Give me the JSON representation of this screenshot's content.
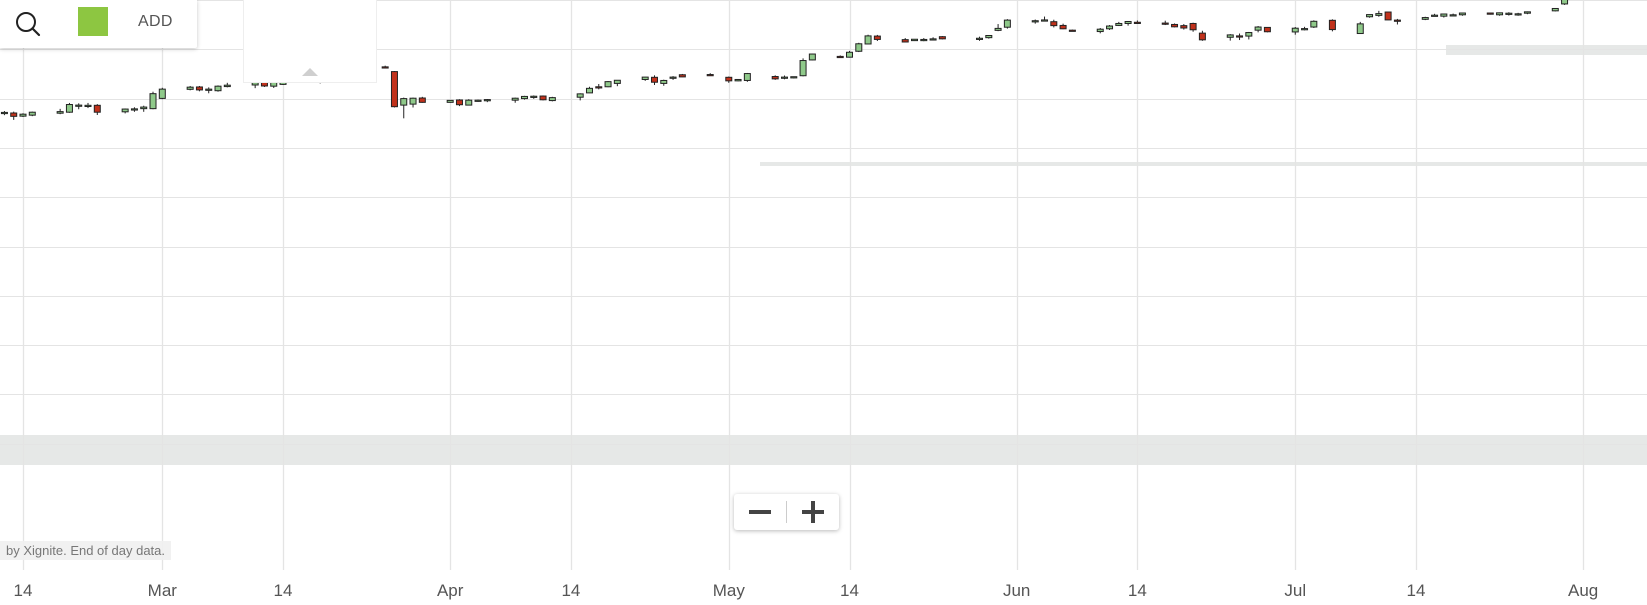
{
  "toolbar": {
    "add_label": "ADD",
    "icons": [
      "search-icon"
    ],
    "series_color": "#8dc641"
  },
  "zoom": {
    "icons": [
      "minus-icon",
      "plus-icon"
    ]
  },
  "attribution": "by Xignite. End of day data.",
  "colors": {
    "up_fill": "#8fc98a",
    "down_fill": "#c1311b",
    "candle_stroke": "#222222",
    "grid": "#e4e4e4",
    "band": "#e6e8e7"
  },
  "chart_data": {
    "type": "candlestick",
    "title": "",
    "xlabel": "",
    "ylabel": "",
    "x_ticks": [
      "14",
      "Mar",
      "14",
      "Apr",
      "14",
      "May",
      "14",
      "Jun",
      "14",
      "Jul",
      "14",
      "Aug"
    ],
    "x_range": [
      "Feb 11",
      "Aug 4"
    ],
    "y_range_approx": [
      0.0,
      50.0
    ],
    "y_gridlines_approx": [
      5,
      10,
      15,
      20,
      25,
      30,
      35,
      40,
      45,
      50
    ],
    "grid": true,
    "legend": "none",
    "candles": [
      {
        "date": "Feb 12",
        "open": 38.5,
        "high": 38.74,
        "low": 38.32,
        "close": 38.6
      },
      {
        "date": "Feb 13",
        "open": 38.54,
        "high": 38.68,
        "low": 37.84,
        "close": 38.2
      },
      {
        "date": "Feb 14",
        "open": 38.22,
        "high": 38.52,
        "low": 38.14,
        "close": 38.42
      },
      {
        "date": "Feb 15",
        "open": 38.32,
        "high": 38.68,
        "low": 38.22,
        "close": 38.62
      },
      {
        "date": "Feb 18",
        "open": 38.52,
        "high": 38.96,
        "low": 38.42,
        "close": 38.68
      },
      {
        "date": "Feb 19",
        "open": 38.62,
        "high": 39.56,
        "low": 38.56,
        "close": 39.4
      },
      {
        "date": "Feb 20",
        "open": 39.22,
        "high": 39.52,
        "low": 38.92,
        "close": 39.34
      },
      {
        "date": "Feb 21",
        "open": 39.32,
        "high": 39.56,
        "low": 39.04,
        "close": 39.32
      },
      {
        "date": "Feb 22",
        "open": 39.32,
        "high": 39.44,
        "low": 38.34,
        "close": 38.62
      },
      {
        "date": "Feb 25",
        "open": 38.66,
        "high": 39.0,
        "low": 38.5,
        "close": 38.94
      },
      {
        "date": "Feb 26",
        "open": 38.96,
        "high": 39.12,
        "low": 38.66,
        "close": 38.96
      },
      {
        "date": "Feb 27",
        "open": 38.98,
        "high": 39.28,
        "low": 38.66,
        "close": 39.14
      },
      {
        "date": "Feb 28",
        "open": 38.98,
        "high": 40.7,
        "low": 38.92,
        "close": 40.5
      },
      {
        "date": "Mar 1",
        "open": 40.02,
        "high": 41.1,
        "low": 39.94,
        "close": 40.96
      },
      {
        "date": "Mar 4",
        "open": 40.94,
        "high": 41.28,
        "low": 40.84,
        "close": 41.16
      },
      {
        "date": "Mar 5",
        "open": 41.18,
        "high": 41.28,
        "low": 40.74,
        "close": 40.88
      },
      {
        "date": "Mar 6",
        "open": 40.96,
        "high": 41.14,
        "low": 40.54,
        "close": 40.96
      },
      {
        "date": "Mar 7",
        "open": 40.8,
        "high": 41.34,
        "low": 40.7,
        "close": 41.26
      },
      {
        "date": "Mar 8",
        "open": 41.22,
        "high": 41.6,
        "low": 41.14,
        "close": 41.36
      },
      {
        "date": "Mar 11",
        "open": 41.38,
        "high": 41.68,
        "low": 41.06,
        "close": 41.62
      },
      {
        "date": "Mar 12",
        "open": 41.7,
        "high": 41.78,
        "low": 41.18,
        "close": 41.28
      },
      {
        "date": "Mar 13",
        "open": 41.26,
        "high": 41.84,
        "low": 41.08,
        "close": 41.76
      },
      {
        "date": "Mar 14",
        "open": 41.44,
        "high": 41.84,
        "low": 41.38,
        "close": 41.74
      },
      {
        "date": "Mar 15",
        "open": 41.72,
        "high": 42.7,
        "low": 41.6,
        "close": 42.54
      },
      {
        "date": "Mar 18",
        "open": 42.48,
        "high": 42.6,
        "low": 41.54,
        "close": 41.94
      },
      {
        "date": "Mar 19",
        "open": 41.8,
        "high": 42.66,
        "low": 41.66,
        "close": 42.44
      },
      {
        "date": "Mar 20",
        "open": 42.44,
        "high": 42.68,
        "low": 42.34,
        "close": 42.64
      },
      {
        "date": "Mar 21",
        "open": 42.58,
        "high": 42.96,
        "low": 42.36,
        "close": 42.88
      },
      {
        "date": "Mar 22",
        "open": 42.9,
        "high": 43.36,
        "low": 42.74,
        "close": 43.1
      },
      {
        "date": "Mar 25",
        "open": 43.22,
        "high": 43.34,
        "low": 43.06,
        "close": 43.12
      },
      {
        "date": "Mar 26",
        "open": 42.74,
        "high": 42.8,
        "low": 39.1,
        "close": 39.18
      },
      {
        "date": "Mar 27",
        "open": 39.34,
        "high": 40.1,
        "low": 38.0,
        "close": 40.0
      },
      {
        "date": "Mar 28",
        "open": 39.44,
        "high": 40.1,
        "low": 39.1,
        "close": 40.04
      },
      {
        "date": "Mar 29",
        "open": 40.06,
        "high": 40.18,
        "low": 39.58,
        "close": 39.62
      },
      {
        "date": "Apr 1",
        "open": 39.62,
        "high": 39.86,
        "low": 39.58,
        "close": 39.82
      },
      {
        "date": "Apr 2",
        "open": 39.86,
        "high": 39.94,
        "low": 39.24,
        "close": 39.38
      },
      {
        "date": "Apr 3",
        "open": 39.34,
        "high": 39.94,
        "low": 39.34,
        "close": 39.84
      },
      {
        "date": "Apr 4",
        "open": 39.72,
        "high": 39.9,
        "low": 39.68,
        "close": 39.84
      },
      {
        "date": "Apr 5",
        "open": 39.8,
        "high": 39.96,
        "low": 39.64,
        "close": 39.9
      },
      {
        "date": "Apr 8",
        "open": 39.84,
        "high": 40.1,
        "low": 39.58,
        "close": 40.04
      },
      {
        "date": "Apr 9",
        "open": 40.0,
        "high": 40.28,
        "low": 39.9,
        "close": 40.22
      },
      {
        "date": "Apr 10",
        "open": 40.24,
        "high": 40.32,
        "low": 39.98,
        "close": 40.24
      },
      {
        "date": "Apr 11",
        "open": 40.26,
        "high": 40.32,
        "low": 39.82,
        "close": 39.88
      },
      {
        "date": "Apr 12",
        "open": 39.8,
        "high": 40.18,
        "low": 39.72,
        "close": 40.1
      },
      {
        "date": "Apr 15",
        "open": 40.14,
        "high": 40.54,
        "low": 39.82,
        "close": 40.48
      },
      {
        "date": "Apr 16",
        "open": 40.58,
        "high": 41.2,
        "low": 40.56,
        "close": 41.04
      },
      {
        "date": "Apr 17",
        "open": 41.2,
        "high": 41.48,
        "low": 40.94,
        "close": 41.14
      },
      {
        "date": "Apr 18",
        "open": 41.2,
        "high": 41.78,
        "low": 41.16,
        "close": 41.72
      },
      {
        "date": "Apr 19",
        "open": 41.54,
        "high": 41.88,
        "low": 41.26,
        "close": 41.86
      },
      {
        "date": "Apr 22",
        "open": 41.94,
        "high": 42.2,
        "low": 41.8,
        "close": 42.18
      },
      {
        "date": "Apr 23",
        "open": 42.16,
        "high": 42.36,
        "low": 41.38,
        "close": 41.66
      },
      {
        "date": "Apr 24",
        "open": 41.54,
        "high": 41.92,
        "low": 41.3,
        "close": 41.84
      },
      {
        "date": "Apr 25",
        "open": 42.08,
        "high": 42.28,
        "low": 41.9,
        "close": 42.18
      },
      {
        "date": "Apr 26",
        "open": 42.42,
        "high": 42.5,
        "low": 42.18,
        "close": 42.2
      },
      {
        "date": "Apr 29",
        "open": 42.44,
        "high": 42.58,
        "low": 42.4,
        "close": 42.42
      },
      {
        "date": "May 1",
        "open": 42.16,
        "high": 42.24,
        "low": 41.6,
        "close": 41.8
      },
      {
        "date": "May 2",
        "open": 41.8,
        "high": 41.96,
        "low": 41.76,
        "close": 41.94
      },
      {
        "date": "May 3",
        "open": 41.84,
        "high": 42.6,
        "low": 41.7,
        "close": 42.54
      },
      {
        "date": "May 6",
        "open": 42.24,
        "high": 42.36,
        "low": 41.9,
        "close": 42.0
      },
      {
        "date": "May 7",
        "open": 42.14,
        "high": 42.34,
        "low": 41.96,
        "close": 42.18
      },
      {
        "date": "May 8",
        "open": 42.16,
        "high": 42.24,
        "low": 42.04,
        "close": 42.22
      },
      {
        "date": "May 9",
        "open": 42.32,
        "high": 44.08,
        "low": 42.26,
        "close": 43.86
      },
      {
        "date": "May 10",
        "open": 43.92,
        "high": 44.56,
        "low": 43.88,
        "close": 44.52
      },
      {
        "date": "May 13",
        "open": 44.28,
        "high": 44.38,
        "low": 44.12,
        "close": 44.2
      },
      {
        "date": "May 14",
        "open": 44.2,
        "high": 44.84,
        "low": 44.16,
        "close": 44.7
      },
      {
        "date": "May 15",
        "open": 44.8,
        "high": 45.66,
        "low": 44.72,
        "close": 45.56
      },
      {
        "date": "May 16",
        "open": 45.54,
        "high": 46.48,
        "low": 45.52,
        "close": 46.36
      },
      {
        "date": "May 17",
        "open": 46.34,
        "high": 46.46,
        "low": 45.84,
        "close": 46.0
      },
      {
        "date": "May 20",
        "open": 45.98,
        "high": 46.14,
        "low": 45.7,
        "close": 45.74
      },
      {
        "date": "May 21",
        "open": 45.88,
        "high": 46.04,
        "low": 45.84,
        "close": 46.02
      },
      {
        "date": "May 22",
        "open": 46.0,
        "high": 46.14,
        "low": 45.82,
        "close": 46.0
      },
      {
        "date": "May 23",
        "open": 45.98,
        "high": 46.22,
        "low": 45.92,
        "close": 46.06
      },
      {
        "date": "May 24",
        "open": 46.28,
        "high": 46.34,
        "low": 46.0,
        "close": 46.06
      },
      {
        "date": "May 28",
        "open": 46.02,
        "high": 46.28,
        "low": 45.86,
        "close": 46.12
      },
      {
        "date": "May 29",
        "open": 46.18,
        "high": 46.42,
        "low": 46.08,
        "close": 46.4
      },
      {
        "date": "May 30",
        "open": 46.92,
        "high": 47.56,
        "low": 46.84,
        "close": 47.12
      },
      {
        "date": "May 31",
        "open": 47.24,
        "high": 48.06,
        "low": 47.1,
        "close": 47.96
      },
      {
        "date": "Jun 3",
        "open": 47.9,
        "high": 48.02,
        "low": 47.6,
        "close": 47.9
      },
      {
        "date": "Jun 4",
        "open": 47.94,
        "high": 48.32,
        "low": 47.86,
        "close": 47.98
      },
      {
        "date": "Jun 5",
        "open": 47.8,
        "high": 48.0,
        "low": 47.22,
        "close": 47.4
      },
      {
        "date": "Jun 6",
        "open": 47.42,
        "high": 47.6,
        "low": 47.04,
        "close": 47.08
      },
      {
        "date": "Jun 7",
        "open": 46.94,
        "high": 47.0,
        "low": 46.82,
        "close": 46.86
      },
      {
        "date": "Jun 10",
        "open": 46.8,
        "high": 47.16,
        "low": 46.62,
        "close": 47.04
      },
      {
        "date": "Jun 11",
        "open": 47.08,
        "high": 47.46,
        "low": 46.96,
        "close": 47.36
      },
      {
        "date": "Jun 12",
        "open": 47.42,
        "high": 47.78,
        "low": 47.36,
        "close": 47.62
      },
      {
        "date": "Jun 13",
        "open": 47.62,
        "high": 47.86,
        "low": 47.4,
        "close": 47.82
      },
      {
        "date": "Jun 14",
        "open": 47.74,
        "high": 47.92,
        "low": 47.58,
        "close": 47.66
      },
      {
        "date": "Jun 17",
        "open": 47.66,
        "high": 47.9,
        "low": 47.46,
        "close": 47.56
      },
      {
        "date": "Jun 18",
        "open": 47.52,
        "high": 47.62,
        "low": 47.22,
        "close": 47.28
      },
      {
        "date": "Jun 19",
        "open": 47.4,
        "high": 47.56,
        "low": 47.0,
        "close": 47.16
      },
      {
        "date": "Jun 20",
        "open": 47.62,
        "high": 47.7,
        "low": 46.78,
        "close": 46.98
      },
      {
        "date": "Jun 21",
        "open": 46.64,
        "high": 46.88,
        "low": 45.86,
        "close": 45.96
      },
      {
        "date": "Jun 24",
        "open": 46.22,
        "high": 46.54,
        "low": 45.88,
        "close": 46.46
      },
      {
        "date": "Jun 25",
        "open": 46.36,
        "high": 46.6,
        "low": 45.94,
        "close": 46.3
      },
      {
        "date": "Jun 26",
        "open": 46.34,
        "high": 46.76,
        "low": 46.0,
        "close": 46.7
      },
      {
        "date": "Jun 27",
        "open": 46.94,
        "high": 47.36,
        "low": 46.72,
        "close": 47.26
      },
      {
        "date": "Jun 28",
        "open": 47.22,
        "high": 47.24,
        "low": 46.72,
        "close": 46.78
      },
      {
        "date": "Jul 1",
        "open": 46.76,
        "high": 47.26,
        "low": 46.48,
        "close": 47.14
      },
      {
        "date": "Jul 2",
        "open": 47.08,
        "high": 47.28,
        "low": 46.92,
        "close": 47.1
      },
      {
        "date": "Jul 3",
        "open": 47.26,
        "high": 47.94,
        "low": 47.16,
        "close": 47.84
      },
      {
        "date": "Jul 5",
        "open": 47.94,
        "high": 48.04,
        "low": 46.82,
        "close": 47.0
      },
      {
        "date": "Jul 8",
        "open": 46.6,
        "high": 47.78,
        "low": 46.58,
        "close": 47.58
      },
      {
        "date": "Jul 9",
        "open": 48.3,
        "high": 48.54,
        "low": 48.2,
        "close": 48.52
      },
      {
        "date": "Jul 10",
        "open": 48.44,
        "high": 48.9,
        "low": 48.3,
        "close": 48.62
      },
      {
        "date": "Jul 11",
        "open": 48.78,
        "high": 48.82,
        "low": 47.96,
        "close": 47.98
      },
      {
        "date": "Jul 12",
        "open": 47.96,
        "high": 48.08,
        "low": 47.52,
        "close": 47.88
      },
      {
        "date": "Jul 15",
        "open": 48.04,
        "high": 48.3,
        "low": 47.96,
        "close": 48.22
      },
      {
        "date": "Jul 16",
        "open": 48.46,
        "high": 48.6,
        "low": 48.4,
        "close": 48.46
      },
      {
        "date": "Jul 17",
        "open": 48.36,
        "high": 48.6,
        "low": 48.22,
        "close": 48.58
      },
      {
        "date": "Jul 18",
        "open": 48.48,
        "high": 48.62,
        "low": 48.38,
        "close": 48.5
      },
      {
        "date": "Jul 19",
        "open": 48.5,
        "high": 48.7,
        "low": 48.4,
        "close": 48.68
      },
      {
        "date": "Jul 22",
        "open": 48.68,
        "high": 48.7,
        "low": 48.52,
        "close": 48.56
      },
      {
        "date": "Jul 23",
        "open": 48.5,
        "high": 48.74,
        "low": 48.4,
        "close": 48.7
      },
      {
        "date": "Jul 24",
        "open": 48.56,
        "high": 48.76,
        "low": 48.42,
        "close": 48.66
      },
      {
        "date": "Jul 25",
        "open": 48.54,
        "high": 48.7,
        "low": 48.4,
        "close": 48.6
      },
      {
        "date": "Jul 26",
        "open": 48.66,
        "high": 48.84,
        "low": 48.56,
        "close": 48.8
      },
      {
        "date": "Jul 29",
        "open": 48.9,
        "high": 49.18,
        "low": 48.84,
        "close": 49.14
      },
      {
        "date": "Jul 30",
        "open": 49.6,
        "high": 51.5,
        "low": 49.5,
        "close": 50.92
      }
    ]
  }
}
